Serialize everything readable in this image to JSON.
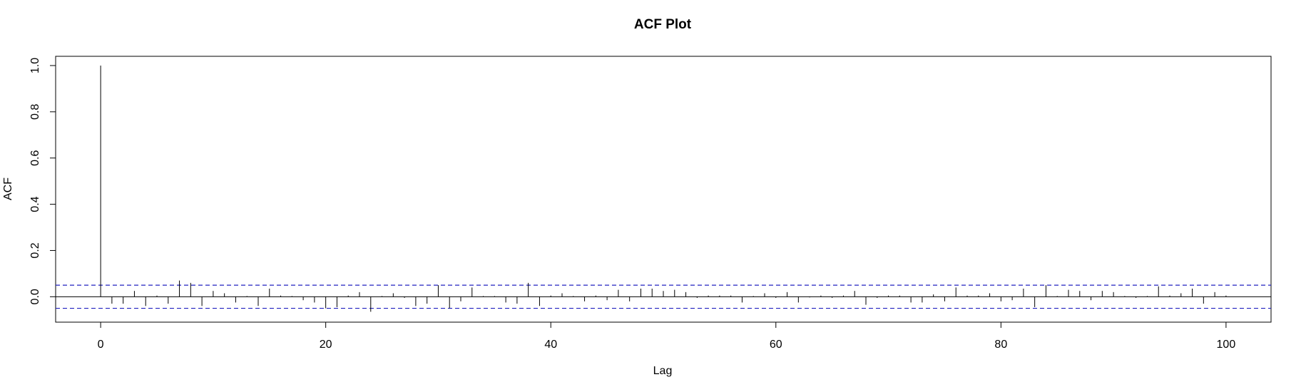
{
  "chart_data": {
    "type": "bar",
    "title": "ACF Plot",
    "xlabel": "Lag",
    "ylabel": "ACF",
    "xlim": [
      -4,
      104
    ],
    "ylim": [
      -0.11,
      1.04
    ],
    "x_ticks": [
      0,
      20,
      40,
      60,
      80,
      100
    ],
    "y_ticks": [
      0.0,
      0.2,
      0.4,
      0.6,
      0.8,
      1.0
    ],
    "y_tick_labels": [
      "0.0",
      "0.2",
      "0.4",
      "0.6",
      "0.8",
      "1.0"
    ],
    "confidence_bound": 0.05,
    "grid": false,
    "colors": {
      "bars": "#000000",
      "bounds": "#2020c0",
      "zero_line": "#000000"
    },
    "lags": [
      0,
      1,
      2,
      3,
      4,
      5,
      6,
      7,
      8,
      9,
      10,
      11,
      12,
      13,
      14,
      15,
      16,
      17,
      18,
      19,
      20,
      21,
      22,
      23,
      24,
      25,
      26,
      27,
      28,
      29,
      30,
      31,
      32,
      33,
      34,
      35,
      36,
      37,
      38,
      39,
      40,
      41,
      42,
      43,
      44,
      45,
      46,
      47,
      48,
      49,
      50,
      51,
      52,
      53,
      54,
      55,
      56,
      57,
      58,
      59,
      60,
      61,
      62,
      63,
      64,
      65,
      66,
      67,
      68,
      69,
      70,
      71,
      72,
      73,
      74,
      75,
      76,
      77,
      78,
      79,
      80,
      81,
      82,
      83,
      84,
      85,
      86,
      87,
      88,
      89,
      90,
      91,
      92,
      93,
      94,
      95,
      96,
      97,
      98,
      99,
      100
    ],
    "values": [
      1.0,
      -0.03,
      -0.03,
      0.025,
      -0.04,
      0.005,
      -0.03,
      0.07,
      0.06,
      -0.04,
      0.025,
      0.015,
      -0.025,
      0.003,
      -0.04,
      0.035,
      0.005,
      0.003,
      -0.015,
      -0.025,
      -0.05,
      -0.045,
      0.005,
      0.02,
      -0.065,
      0.003,
      0.015,
      -0.005,
      -0.04,
      -0.03,
      0.05,
      -0.05,
      -0.02,
      0.04,
      0.003,
      0.003,
      -0.025,
      -0.03,
      0.06,
      -0.04,
      0.005,
      0.015,
      0.003,
      -0.02,
      0.005,
      -0.015,
      0.03,
      -0.02,
      0.035,
      0.035,
      0.025,
      0.03,
      0.02,
      -0.005,
      0.005,
      0.005,
      0.005,
      -0.025,
      0.003,
      0.015,
      -0.005,
      0.02,
      -0.025,
      -0.003,
      0.005,
      -0.005,
      0.005,
      0.025,
      -0.035,
      -0.005,
      0.005,
      0.005,
      -0.025,
      -0.025,
      0.01,
      -0.02,
      0.04,
      0.005,
      0.005,
      0.015,
      -0.02,
      -0.015,
      0.035,
      -0.045,
      0.05,
      0.003,
      0.03,
      0.025,
      -0.015,
      0.025,
      0.02,
      0.003,
      -0.005,
      0.003,
      0.045,
      0.005,
      0.015,
      0.035,
      -0.03,
      0.02,
      0.005
    ]
  }
}
